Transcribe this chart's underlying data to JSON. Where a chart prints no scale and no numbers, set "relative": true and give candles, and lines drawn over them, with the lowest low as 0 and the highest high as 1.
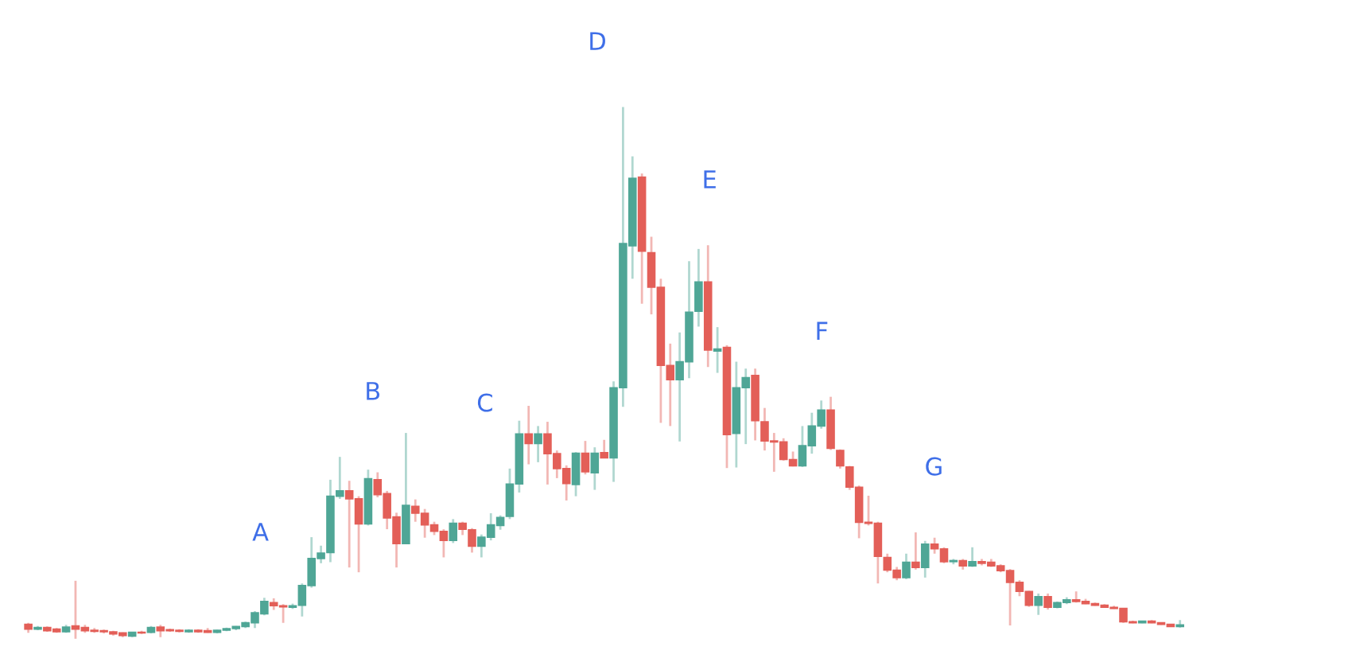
{
  "chart_data": {
    "type": "candlestick",
    "relative": true,
    "colors": [
      "#e35f58",
      "#4fa696",
      "#e35f58",
      "#e35f58",
      "#4fa696",
      "#e35f58",
      "#e35f58",
      "#e35f58",
      "#e35f58",
      "#e35f58",
      "#e35f58",
      "#4fa696",
      "#e35f58",
      "#4fa696",
      "#e35f58",
      "#e35f58",
      "#e35f58",
      "#4fa696",
      "#e35f58",
      "#e35f58",
      "#4fa696",
      "#4fa696",
      "#4fa696",
      "#4fa696",
      "#4fa696",
      "#4fa696",
      "#e35f58",
      "#e35f58",
      "#4fa696",
      "#4fa696",
      "#4fa696",
      "#4fa696",
      "#4fa696",
      "#4fa696",
      "#e35f58",
      "#e35f58",
      "#4fa696",
      "#e35f58",
      "#e35f58",
      "#e35f58",
      "#4fa696",
      "#e35f58",
      "#e35f58",
      "#e35f58",
      "#e35f58",
      "#4fa696",
      "#e35f58",
      "#e35f58",
      "#4fa696",
      "#4fa696",
      "#4fa696",
      "#4fa696",
      "#4fa696",
      "#e35f58",
      "#4fa696",
      "#e35f58",
      "#e35f58",
      "#e35f58",
      "#4fa696",
      "#e35f58",
      "#4fa696",
      "#e35f58",
      "#4fa696",
      "#4fa696",
      "#4fa696",
      "#e35f58",
      "#e35f58",
      "#e35f58",
      "#e35f58",
      "#4fa696",
      "#4fa696",
      "#4fa696",
      "#e35f58",
      "#4fa696",
      "#e35f58",
      "#4fa696",
      "#4fa696",
      "#e35f58",
      "#e35f58",
      "#e35f58",
      "#e35f58",
      "#e35f58",
      "#4fa696",
      "#4fa696",
      "#4fa696",
      "#e35f58",
      "#e35f58",
      "#e35f58",
      "#e35f58",
      "#e35f58",
      "#e35f58",
      "#e35f58",
      "#e35f58",
      "#4fa696",
      "#e35f58",
      "#4fa696",
      "#e35f58",
      "#e35f58",
      "#4fa696",
      "#e35f58",
      "#4fa696",
      "#e35f58",
      "#e35f58",
      "#e35f58",
      "#e35f58",
      "#e35f58",
      "#e35f58",
      "#4fa696",
      "#e35f58",
      "#4fa696",
      "#4fa696",
      "#e35f58",
      "#e35f58",
      "#e35f58",
      "#e35f58",
      "#e35f58",
      "#e35f58",
      "#e35f58",
      "#4fa696",
      "#e35f58",
      "#e35f58",
      "#e35f58",
      "#4fa696"
    ],
    "categories": [
      null,
      null,
      null,
      null,
      null,
      null,
      null,
      null,
      null,
      null,
      null,
      null,
      null,
      null,
      null,
      null,
      null,
      null,
      null,
      null,
      null,
      null,
      null,
      null,
      null,
      null,
      null,
      null,
      null,
      null,
      null,
      null,
      null,
      null,
      null,
      null,
      null,
      null,
      null,
      null,
      null,
      null,
      null,
      null,
      null,
      null,
      null,
      null,
      null,
      null,
      null,
      null,
      null,
      null,
      null,
      null,
      null,
      null,
      null,
      null,
      null,
      null,
      null,
      null,
      null,
      null,
      null,
      null,
      null,
      null,
      null,
      null,
      null,
      null,
      null,
      null,
      null,
      null,
      null,
      null,
      null,
      null,
      null,
      null,
      null,
      null,
      null,
      null,
      null,
      null,
      null,
      null,
      null,
      null,
      null,
      null,
      null,
      null,
      null,
      null,
      null,
      null,
      null,
      null,
      null,
      null,
      null,
      null,
      null,
      null,
      null,
      null,
      null,
      null,
      null,
      null,
      null,
      null,
      null,
      null,
      null,
      null,
      null
    ],
    "ohlc": [
      [
        0.027,
        0.03,
        0.011,
        0.018
      ],
      [
        0.018,
        0.024,
        0.016,
        0.021
      ],
      [
        0.021,
        0.023,
        0.013,
        0.015
      ],
      [
        0.018,
        0.02,
        0.011,
        0.013
      ],
      [
        0.013,
        0.026,
        0.011,
        0.022
      ],
      [
        0.024,
        0.109,
        0.0,
        0.018
      ],
      [
        0.021,
        0.026,
        0.011,
        0.015
      ],
      [
        0.016,
        0.02,
        0.011,
        0.014
      ],
      [
        0.015,
        0.017,
        0.01,
        0.013
      ],
      [
        0.013,
        0.015,
        0.006,
        0.009
      ],
      [
        0.011,
        0.012,
        0.003,
        0.006
      ],
      [
        0.005,
        0.013,
        0.003,
        0.012
      ],
      [
        0.012,
        0.015,
        0.009,
        0.011
      ],
      [
        0.012,
        0.024,
        0.01,
        0.021
      ],
      [
        0.022,
        0.026,
        0.003,
        0.015
      ],
      [
        0.017,
        0.019,
        0.013,
        0.015
      ],
      [
        0.016,
        0.018,
        0.012,
        0.014
      ],
      [
        0.013,
        0.018,
        0.011,
        0.016
      ],
      [
        0.016,
        0.018,
        0.011,
        0.013
      ],
      [
        0.015,
        0.02,
        0.011,
        0.012
      ],
      [
        0.012,
        0.017,
        0.01,
        0.016
      ],
      [
        0.016,
        0.021,
        0.014,
        0.019
      ],
      [
        0.019,
        0.024,
        0.016,
        0.023
      ],
      [
        0.023,
        0.032,
        0.02,
        0.03
      ],
      [
        0.03,
        0.052,
        0.02,
        0.049
      ],
      [
        0.047,
        0.077,
        0.044,
        0.07
      ],
      [
        0.068,
        0.076,
        0.054,
        0.062
      ],
      [
        0.062,
        0.065,
        0.03,
        0.06
      ],
      [
        0.059,
        0.066,
        0.056,
        0.062
      ],
      [
        0.063,
        0.104,
        0.042,
        0.1
      ],
      [
        0.1,
        0.191,
        0.096,
        0.151
      ],
      [
        0.151,
        0.175,
        0.142,
        0.161
      ],
      [
        0.162,
        0.299,
        0.144,
        0.268
      ],
      [
        0.268,
        0.342,
        0.263,
        0.278
      ],
      [
        0.278,
        0.297,
        0.134,
        0.263
      ],
      [
        0.263,
        0.268,
        0.125,
        0.216
      ],
      [
        0.216,
        0.318,
        0.213,
        0.301
      ],
      [
        0.299,
        0.313,
        0.266,
        0.271
      ],
      [
        0.273,
        0.278,
        0.206,
        0.227
      ],
      [
        0.229,
        0.237,
        0.134,
        0.179
      ],
      [
        0.179,
        0.387,
        0.179,
        0.251
      ],
      [
        0.249,
        0.262,
        0.22,
        0.236
      ],
      [
        0.236,
        0.244,
        0.19,
        0.214
      ],
      [
        0.214,
        0.22,
        0.195,
        0.202
      ],
      [
        0.202,
        0.206,
        0.153,
        0.185
      ],
      [
        0.185,
        0.225,
        0.18,
        0.217
      ],
      [
        0.217,
        0.22,
        0.195,
        0.206
      ],
      [
        0.205,
        0.208,
        0.162,
        0.174
      ],
      [
        0.174,
        0.196,
        0.153,
        0.191
      ],
      [
        0.191,
        0.236,
        0.185,
        0.214
      ],
      [
        0.213,
        0.232,
        0.205,
        0.228
      ],
      [
        0.23,
        0.32,
        0.225,
        0.291
      ],
      [
        0.291,
        0.41,
        0.275,
        0.385
      ],
      [
        0.385,
        0.438,
        0.328,
        0.367
      ],
      [
        0.367,
        0.4,
        0.332,
        0.385
      ],
      [
        0.385,
        0.408,
        0.29,
        0.348
      ],
      [
        0.348,
        0.354,
        0.302,
        0.32
      ],
      [
        0.32,
        0.326,
        0.26,
        0.292
      ],
      [
        0.29,
        0.351,
        0.268,
        0.349
      ],
      [
        0.349,
        0.372,
        0.309,
        0.314
      ],
      [
        0.312,
        0.36,
        0.28,
        0.349
      ],
      [
        0.35,
        0.374,
        0.34,
        0.34
      ],
      [
        0.34,
        0.484,
        0.295,
        0.472
      ],
      [
        0.472,
        1.0,
        0.436,
        0.743
      ],
      [
        0.739,
        0.907,
        0.677,
        0.866
      ],
      [
        0.868,
        0.875,
        0.63,
        0.729
      ],
      [
        0.726,
        0.756,
        0.61,
        0.661
      ],
      [
        0.661,
        0.677,
        0.406,
        0.514
      ],
      [
        0.514,
        0.555,
        0.4,
        0.487
      ],
      [
        0.487,
        0.576,
        0.371,
        0.521
      ],
      [
        0.521,
        0.71,
        0.49,
        0.614
      ],
      [
        0.616,
        0.733,
        0.587,
        0.671
      ],
      [
        0.671,
        0.74,
        0.511,
        0.543
      ],
      [
        0.541,
        0.586,
        0.5,
        0.545
      ],
      [
        0.548,
        0.552,
        0.321,
        0.384
      ],
      [
        0.386,
        0.521,
        0.322,
        0.472
      ],
      [
        0.472,
        0.508,
        0.366,
        0.491
      ],
      [
        0.495,
        0.508,
        0.373,
        0.41
      ],
      [
        0.408,
        0.434,
        0.354,
        0.372
      ],
      [
        0.372,
        0.387,
        0.314,
        0.37
      ],
      [
        0.37,
        0.377,
        0.335,
        0.337
      ],
      [
        0.337,
        0.352,
        0.324,
        0.325
      ],
      [
        0.325,
        0.4,
        0.323,
        0.363
      ],
      [
        0.363,
        0.425,
        0.348,
        0.4
      ],
      [
        0.4,
        0.448,
        0.395,
        0.43
      ],
      [
        0.43,
        0.455,
        0.355,
        0.358
      ],
      [
        0.354,
        0.356,
        0.32,
        0.325
      ],
      [
        0.323,
        0.325,
        0.28,
        0.285
      ],
      [
        0.285,
        0.288,
        0.189,
        0.219
      ],
      [
        0.219,
        0.269,
        0.213,
        0.217
      ],
      [
        0.217,
        0.22,
        0.104,
        0.155
      ],
      [
        0.153,
        0.16,
        0.125,
        0.129
      ],
      [
        0.129,
        0.135,
        0.11,
        0.115
      ],
      [
        0.115,
        0.16,
        0.112,
        0.144
      ],
      [
        0.144,
        0.2,
        0.13,
        0.134
      ],
      [
        0.134,
        0.184,
        0.115,
        0.178
      ],
      [
        0.178,
        0.19,
        0.16,
        0.169
      ],
      [
        0.169,
        0.172,
        0.142,
        0.145
      ],
      [
        0.145,
        0.15,
        0.14,
        0.147
      ],
      [
        0.147,
        0.15,
        0.13,
        0.137
      ],
      [
        0.137,
        0.172,
        0.135,
        0.145
      ],
      [
        0.145,
        0.15,
        0.138,
        0.142
      ],
      [
        0.144,
        0.15,
        0.135,
        0.137
      ],
      [
        0.137,
        0.14,
        0.125,
        0.128
      ],
      [
        0.128,
        0.131,
        0.025,
        0.106
      ],
      [
        0.106,
        0.11,
        0.08,
        0.089
      ],
      [
        0.089,
        0.09,
        0.06,
        0.063
      ],
      [
        0.063,
        0.085,
        0.045,
        0.079
      ],
      [
        0.079,
        0.085,
        0.055,
        0.059
      ],
      [
        0.059,
        0.07,
        0.057,
        0.068
      ],
      [
        0.068,
        0.078,
        0.065,
        0.073
      ],
      [
        0.073,
        0.089,
        0.068,
        0.07
      ],
      [
        0.07,
        0.075,
        0.065,
        0.066
      ],
      [
        0.066,
        0.068,
        0.062,
        0.063
      ],
      [
        0.063,
        0.065,
        0.058,
        0.059
      ],
      [
        0.059,
        0.062,
        0.056,
        0.057
      ],
      [
        0.057,
        0.058,
        0.03,
        0.032
      ],
      [
        0.032,
        0.034,
        0.029,
        0.03
      ],
      [
        0.03,
        0.034,
        0.029,
        0.033
      ],
      [
        0.033,
        0.035,
        0.029,
        0.03
      ],
      [
        0.03,
        0.031,
        0.026,
        0.027
      ],
      [
        0.027,
        0.028,
        0.022,
        0.023
      ],
      [
        0.023,
        0.035,
        0.021,
        0.026
      ]
    ],
    "annotations": [
      "A",
      "B",
      "C",
      "D",
      "E",
      "F",
      "G"
    ]
  }
}
